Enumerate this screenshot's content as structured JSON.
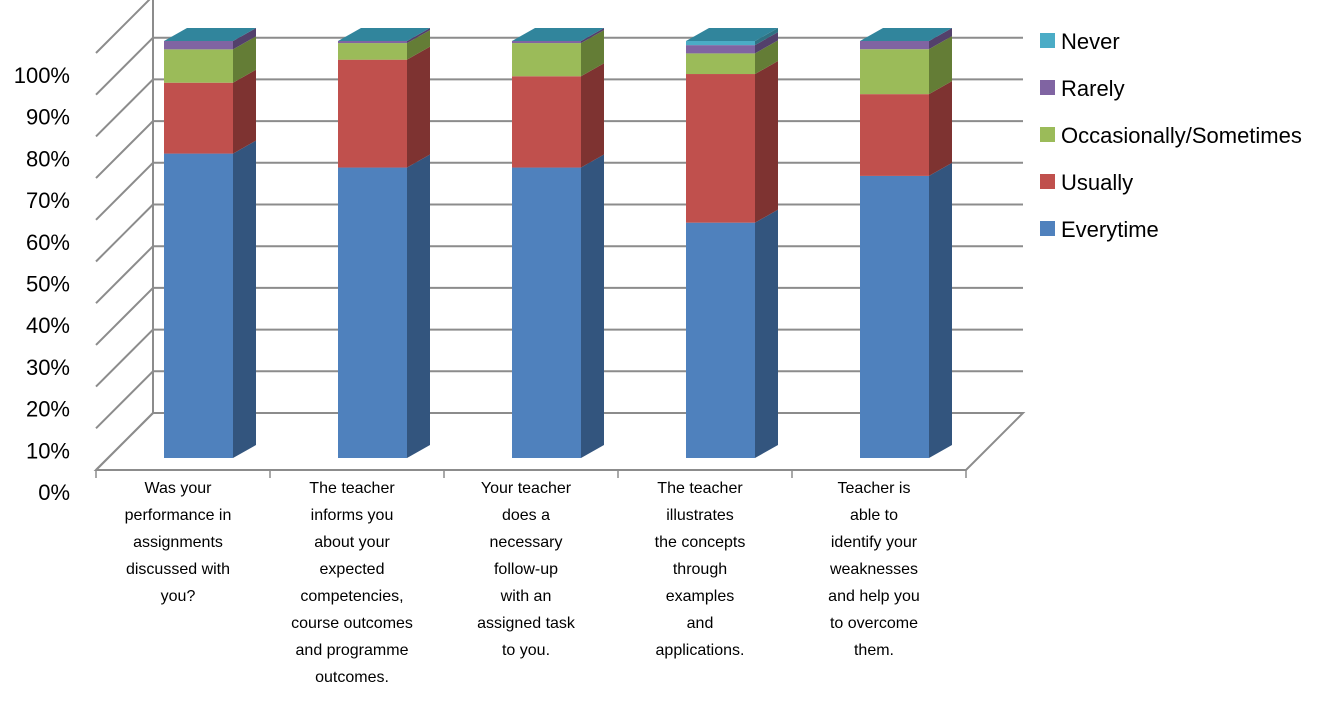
{
  "chart_data": {
    "type": "bar",
    "stacked": true,
    "percent": true,
    "three_d": true,
    "title": "",
    "xlabel": "",
    "ylabel": "",
    "ylim": [
      0,
      100
    ],
    "y_ticks": [
      "0%",
      "10%",
      "20%",
      "30%",
      "40%",
      "50%",
      "60%",
      "70%",
      "80%",
      "90%",
      "100%"
    ],
    "grid": true,
    "legend_position": "right",
    "categories": [
      "Was your performance in assignments discussed with you?",
      "The teacher informs you about your expected competencies, course outcomes and programme outcomes.",
      "Your teacher does a necessary follow-up with an assigned task to you.",
      "The teacher illustrates the concepts through examples and applications.",
      "Teacher is able to identify your weaknesses and help you to overcome them."
    ],
    "category_lines": [
      [
        "Was your",
        "performance in",
        "assignments",
        "discussed with",
        "you?"
      ],
      [
        "The teacher",
        "informs you",
        "about your",
        "expected",
        "competencies,",
        "course outcomes",
        "and programme",
        "outcomes."
      ],
      [
        "Your teacher",
        "does a",
        "necessary",
        "follow-up",
        "with an",
        "assigned task",
        "to you."
      ],
      [
        "The teacher",
        "illustrates",
        "the concepts",
        "through",
        "examples",
        "and",
        "applications."
      ],
      [
        "Teacher is",
        "able to",
        "identify your",
        "weaknesses",
        "and help you",
        "to overcome",
        "them."
      ]
    ],
    "series": [
      {
        "name": "Everytime",
        "color": "#4F81BD",
        "side_color": "#33557E",
        "top_color": "#7DA3D3",
        "values": [
          73,
          70,
          70,
          57,
          69
        ]
      },
      {
        "name": "Usually",
        "color": "#C0504D",
        "side_color": "#7E3331",
        "top_color": "#D7837F",
        "values": [
          17,
          26,
          22,
          36,
          20
        ]
      },
      {
        "name": "Occasionally/Sometimes",
        "color": "#9BBB59",
        "side_color": "#647D36",
        "top_color": "#BAD389",
        "values": [
          8,
          4,
          8,
          5,
          11
        ]
      },
      {
        "name": "Rarely",
        "color": "#8064A2",
        "side_color": "#53406B",
        "top_color": "#A590C0",
        "values": [
          2,
          0.5,
          0.5,
          2,
          2
        ]
      },
      {
        "name": "Never",
        "color": "#4BACC6",
        "side_color": "#2F7283",
        "top_color": "#3E8FA5",
        "values": [
          0,
          0,
          0,
          1,
          0
        ]
      }
    ],
    "legend_order": [
      "Never",
      "Rarely",
      "Occasionally/Sometimes",
      "Usually",
      "Everytime"
    ]
  }
}
